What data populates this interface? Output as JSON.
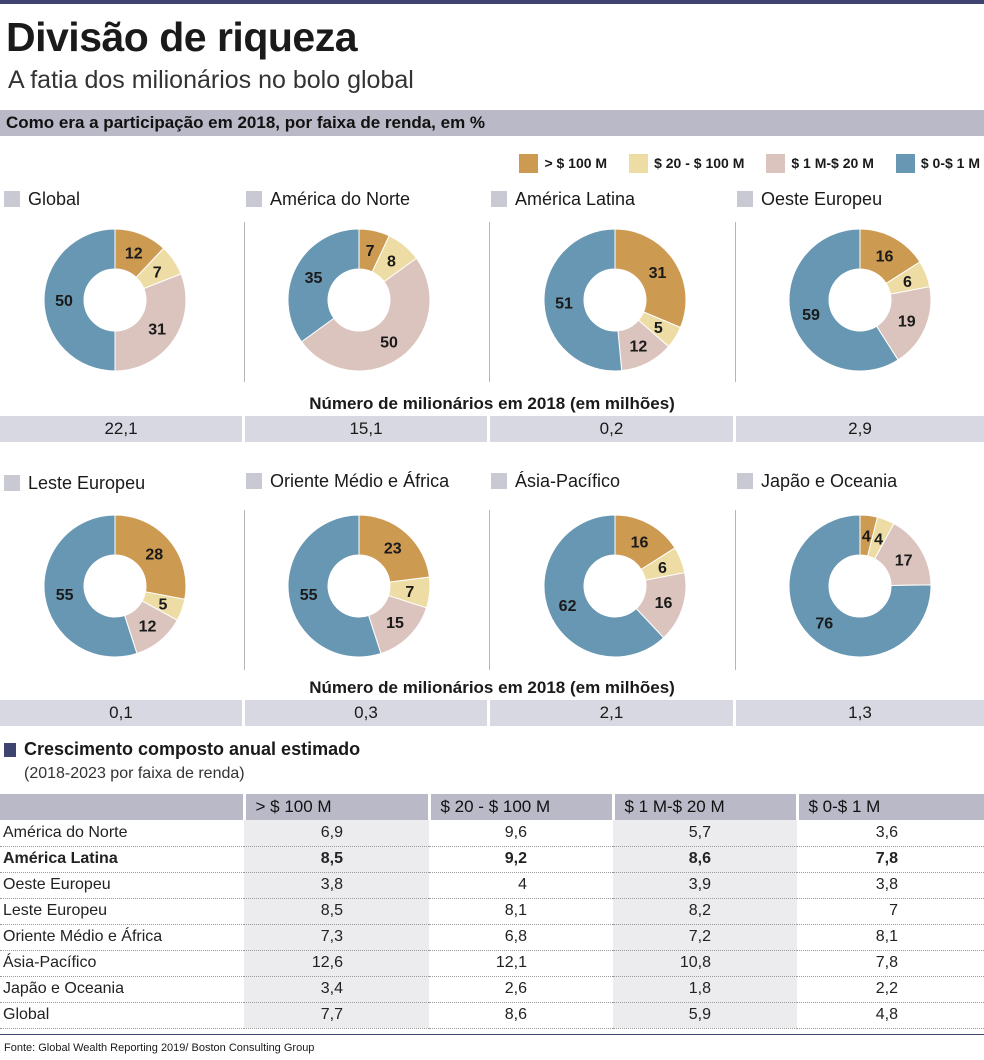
{
  "header": {
    "title": "Divisão de riqueza",
    "subtitle": "A fatia dos milionários no bolo global",
    "section": "Como era a participação em 2018, por faixa de renda, em %"
  },
  "colors": {
    "gt100": "#cd9a52",
    "20to100": "#eedca5",
    "1to20": "#dbc4bd",
    "0to1": "#6797b2"
  },
  "legend": [
    {
      "label": "> $ 100 M",
      "color": "#cd9a52"
    },
    {
      "label": "$ 20 - $ 100 M",
      "color": "#eedca5"
    },
    {
      "label": "$ 1 M-$ 20 M",
      "color": "#dbc4bd"
    },
    {
      "label": "$ 0-$ 1 M",
      "color": "#6797b2"
    }
  ],
  "chart_data": {
    "type": "pie",
    "variant": "donut",
    "unit": "%",
    "categories": [
      "> $ 100 M",
      "$ 20 - $ 100 M",
      "$ 1 M-$ 20 M",
      "$ 0-$ 1 M"
    ],
    "regions": [
      {
        "name": "Global",
        "values": [
          12,
          7,
          31,
          50
        ]
      },
      {
        "name": "América do Norte",
        "values": [
          7,
          8,
          50,
          35
        ]
      },
      {
        "name": "América Latina",
        "values": [
          31,
          5,
          12,
          51
        ]
      },
      {
        "name": "Oeste Europeu",
        "values": [
          16,
          6,
          19,
          59
        ]
      },
      {
        "name": "Leste Europeu",
        "values": [
          28,
          5,
          12,
          55
        ]
      },
      {
        "name": "Oriente Médio e África",
        "values": [
          23,
          7,
          15,
          55
        ]
      },
      {
        "name": "Ásia-Pacífico",
        "values": [
          16,
          6,
          16,
          62
        ]
      },
      {
        "name": "Japão e Oceania",
        "values": [
          4,
          4,
          17,
          76
        ]
      }
    ]
  },
  "counts": {
    "title": "Número de milionários em 2018 (em milhões)",
    "row1": [
      "22,1",
      "15,1",
      "0,2",
      "2,9"
    ],
    "row2": [
      "0,1",
      "0,3",
      "2,1",
      "1,3"
    ]
  },
  "growth": {
    "title": "Crescimento composto anual estimado",
    "subtitle": "(2018-2023 por faixa de renda)",
    "columns": [
      "> $ 100 M",
      "$ 20 - $ 100 M",
      "$ 1 M-$ 20 M",
      "$ 0-$ 1 M"
    ],
    "rows": [
      {
        "region": "América do Norte",
        "values": [
          "6,9",
          "9,6",
          "5,7",
          "3,6"
        ],
        "bold": false
      },
      {
        "region": "América Latina",
        "values": [
          "8,5",
          "9,2",
          "8,6",
          "7,8"
        ],
        "bold": true
      },
      {
        "region": "Oeste Europeu",
        "values": [
          "3,8",
          "4",
          "3,9",
          "3,8"
        ],
        "bold": false
      },
      {
        "region": "Leste Europeu",
        "values": [
          "8,5",
          "8,1",
          "8,2",
          "7"
        ],
        "bold": false
      },
      {
        "region": "Oriente Médio e África",
        "values": [
          "7,3",
          "6,8",
          "7,2",
          "8,1"
        ],
        "bold": false
      },
      {
        "region": "Ásia-Pacífico",
        "values": [
          "12,6",
          "12,1",
          "10,8",
          "7,8"
        ],
        "bold": false
      },
      {
        "region": "Japão e Oceania",
        "values": [
          "3,4",
          "2,6",
          "1,8",
          "2,2"
        ],
        "bold": false
      },
      {
        "region": "Global",
        "values": [
          "7,7",
          "8,6",
          "5,9",
          "4,8"
        ],
        "bold": false
      }
    ]
  },
  "source": "Fonte: Global Wealth Reporting 2019/ Boston Consulting Group"
}
